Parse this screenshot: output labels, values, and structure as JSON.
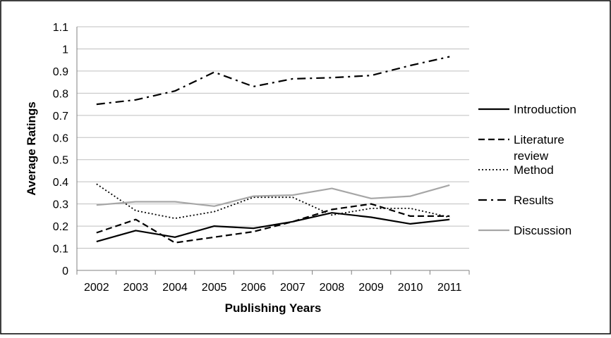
{
  "chart_data": {
    "type": "line",
    "title": "",
    "xlabel": "Publishing Years",
    "ylabel": "Average Ratings",
    "categories": [
      "2002",
      "2003",
      "2004",
      "2005",
      "2006",
      "2007",
      "2008",
      "2009",
      "2010",
      "2011"
    ],
    "ylim": [
      0,
      1.1
    ],
    "yticks": [
      "0",
      "0.1",
      "0.2",
      "0.3",
      "0.4",
      "0.5",
      "0.6",
      "0.7",
      "0.8",
      "0.9",
      "1",
      "1.1"
    ],
    "grid": true,
    "legend_position": "right",
    "series": [
      {
        "name": "Introduction",
        "style": "solid",
        "color": "#000000",
        "values": [
          0.13,
          0.18,
          0.15,
          0.2,
          0.19,
          0.22,
          0.26,
          0.24,
          0.21,
          0.23
        ]
      },
      {
        "name": "Literature review",
        "style": "dashed",
        "color": "#000000",
        "values": [
          0.17,
          0.23,
          0.125,
          0.15,
          0.175,
          0.22,
          0.275,
          0.3,
          0.245,
          0.245
        ]
      },
      {
        "name": "Method",
        "style": "dotted",
        "color": "#000000",
        "values": [
          0.39,
          0.27,
          0.235,
          0.265,
          0.33,
          0.33,
          0.25,
          0.28,
          0.28,
          0.24
        ]
      },
      {
        "name": "Results",
        "style": "dashdot",
        "color": "#000000",
        "values": [
          0.75,
          0.77,
          0.81,
          0.895,
          0.83,
          0.865,
          0.87,
          0.88,
          0.925,
          0.965
        ]
      },
      {
        "name": "Discussion",
        "style": "solid",
        "color": "#a6a6a6",
        "values": [
          0.295,
          0.31,
          0.31,
          0.29,
          0.335,
          0.34,
          0.37,
          0.325,
          0.335,
          0.385
        ]
      }
    ]
  }
}
